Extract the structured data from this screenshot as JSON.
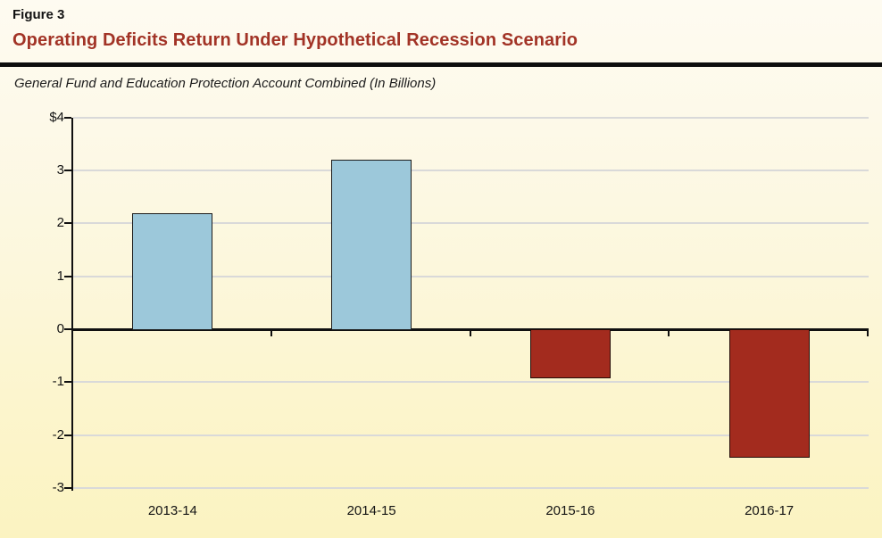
{
  "figure_label": "Figure 3",
  "title": "Operating Deficits Return Under Hypothetical Recession Scenario",
  "subtitle": "General Fund and Education Protection Account Combined (In Billions)",
  "colors": {
    "title_red": "#a23326",
    "rule_black": "#0d0d0d",
    "positive_bar_fill": "#9cc8da",
    "positive_bar_border": "#1c1c1c",
    "negative_bar_fill": "#a32b1e",
    "negative_bar_border": "#240b07",
    "gridline": "#d9d9d9",
    "axis": "#101010",
    "background_top": "#fefbf1",
    "background_bottom": "#fbf3c1"
  },
  "chart_data": {
    "type": "bar",
    "title": "Operating Deficits Return Under Hypothetical Recession Scenario",
    "subtitle": "General Fund and Education Protection Account Combined (In Billions)",
    "categories": [
      "2013-14",
      "2014-15",
      "2015-16",
      "2016-17"
    ],
    "values": [
      2.2,
      3.2,
      -0.9,
      -2.4
    ],
    "xlabel": "",
    "ylabel": "",
    "ylim": [
      -3,
      4
    ],
    "grid": true,
    "legend": false,
    "y_axis": {
      "tick_values": [
        4,
        3,
        2,
        1,
        0,
        -1,
        -2,
        -3
      ],
      "tick_labels": [
        "$4",
        "3",
        "2",
        "1",
        "0",
        "-1",
        "-2",
        "-3"
      ]
    }
  }
}
